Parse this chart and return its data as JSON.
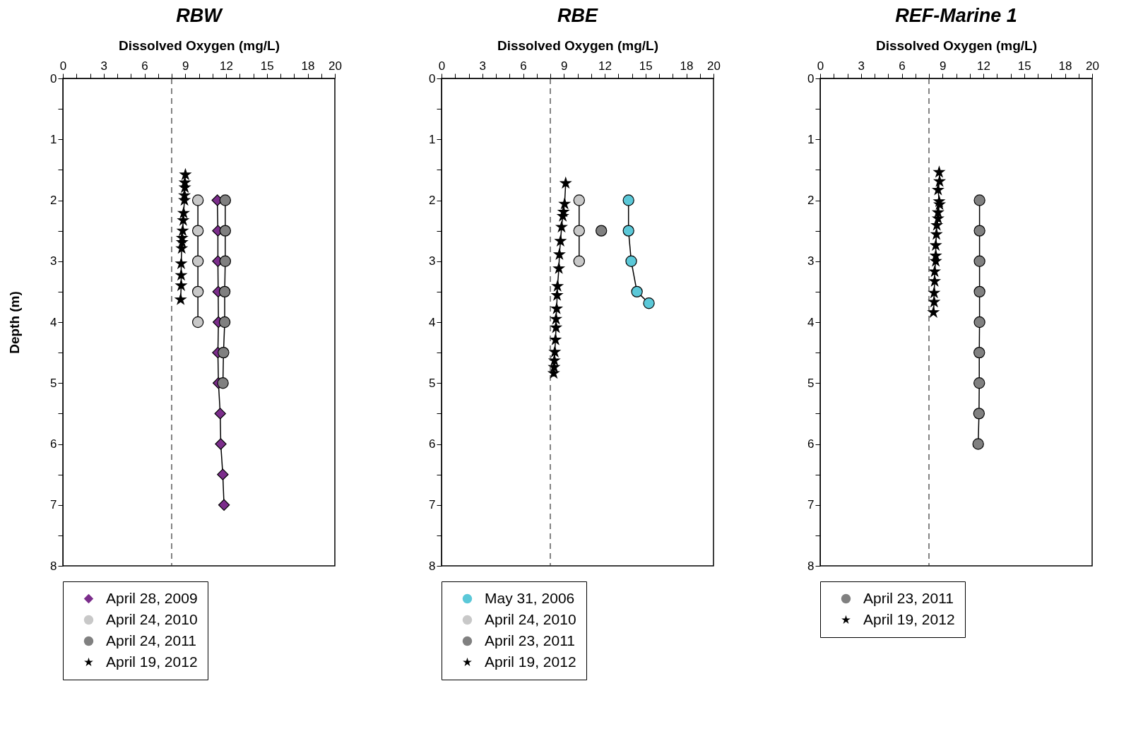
{
  "chart_data": [
    {
      "type": "line",
      "title": "RBW",
      "xlabel": "Dissolved Oxygen (mg/L)",
      "ylabel": "Depth (m)",
      "xlim": [
        0,
        20
      ],
      "xticks": [
        0,
        {
          "value": 1,
          "label": null
        },
        {
          "value": 2,
          "label": null
        },
        3,
        {
          "value": 4,
          "label": null
        },
        {
          "value": 5,
          "label": null
        },
        6,
        {
          "value": 7,
          "label": null
        },
        {
          "value": 8,
          "label": null
        },
        9,
        {
          "value": 10,
          "label": null
        },
        {
          "value": 11,
          "label": null
        },
        12,
        {
          "value": 13,
          "label": null
        },
        {
          "value": 14,
          "label": null
        },
        15,
        {
          "value": 16,
          "label": null
        },
        {
          "value": 17,
          "label": null
        },
        18,
        {
          "value": 19,
          "label": null
        },
        20
      ],
      "ylim": [
        8,
        0
      ],
      "yticks": [
        0,
        {
          "value": 0.5,
          "label": null
        },
        1,
        {
          "value": 1.5,
          "label": null
        },
        2,
        {
          "value": 2.5,
          "label": null
        },
        3,
        {
          "value": 3.5,
          "label": null
        },
        4,
        {
          "value": 4.5,
          "label": null
        },
        5,
        {
          "value": 5.5,
          "label": null
        },
        6,
        {
          "value": 6.5,
          "label": null
        },
        7,
        {
          "value": 7.5,
          "label": null
        },
        8
      ],
      "grid": false,
      "legend": "bottom",
      "ref_lines": [
        {
          "axis": "x",
          "value": 8,
          "line_style": "dashed"
        }
      ],
      "series": [
        {
          "name": "April 28, 2009",
          "color": "#7b2d8b",
          "marker": "diamond",
          "x": [
            11.36,
            11.4,
            11.4,
            11.42,
            11.44,
            11.4,
            11.44,
            11.57,
            11.61,
            11.76,
            11.85
          ],
          "values": [
            2,
            2.5,
            3,
            3.5,
            4,
            4.5,
            5,
            5.5,
            6,
            6.5,
            7
          ]
        },
        {
          "name": "April 24, 2010",
          "color": "#c8c8c8",
          "marker": "circle",
          "x": [
            9.93,
            9.93,
            9.93,
            9.93,
            9.93
          ],
          "values": [
            2,
            2.5,
            3,
            3.5,
            4
          ]
        },
        {
          "name": "April 24, 2011",
          "color": "#808080",
          "marker": "circle",
          "x": [
            11.94,
            11.94,
            11.94,
            11.9,
            11.9,
            11.81,
            11.77
          ],
          "values": [
            2,
            2.5,
            3,
            3.5,
            4,
            4.5,
            5
          ]
        },
        {
          "name": "April 19, 2012",
          "color": "#000000",
          "marker": "star",
          "x": [
            9.01,
            8.97,
            8.97,
            8.94,
            8.94,
            8.88,
            8.85,
            8.81,
            8.77,
            8.77,
            8.74,
            8.7,
            8.7,
            8.7,
            8.66
          ],
          "values": [
            1.58,
            1.71,
            1.79,
            1.92,
            2.0,
            2.21,
            2.33,
            2.5,
            2.62,
            2.69,
            2.79,
            3.04,
            3.23,
            3.4,
            3.63
          ]
        }
      ]
    },
    {
      "type": "line",
      "title": "RBE",
      "xlabel": "Dissolved Oxygen (mg/L)",
      "xlim": [
        0,
        20
      ],
      "xticks": [
        0,
        {
          "value": 1,
          "label": null
        },
        {
          "value": 2,
          "label": null
        },
        3,
        {
          "value": 4,
          "label": null
        },
        {
          "value": 5,
          "label": null
        },
        6,
        {
          "value": 7,
          "label": null
        },
        {
          "value": 8,
          "label": null
        },
        9,
        {
          "value": 10,
          "label": null
        },
        {
          "value": 11,
          "label": null
        },
        12,
        {
          "value": 13,
          "label": null
        },
        {
          "value": 14,
          "label": null
        },
        15,
        {
          "value": 16,
          "label": null
        },
        {
          "value": 17,
          "label": null
        },
        18,
        {
          "value": 19,
          "label": null
        },
        20
      ],
      "ylim": [
        8,
        0
      ],
      "yticks": [
        0,
        {
          "value": 0.5,
          "label": null
        },
        1,
        {
          "value": 1.5,
          "label": null
        },
        2,
        {
          "value": 2.5,
          "label": null
        },
        3,
        {
          "value": 3.5,
          "label": null
        },
        4,
        {
          "value": 4.5,
          "label": null
        },
        5,
        {
          "value": 5.5,
          "label": null
        },
        6,
        {
          "value": 6.5,
          "label": null
        },
        7,
        {
          "value": 7.5,
          "label": null
        },
        8
      ],
      "grid": false,
      "legend": "bottom",
      "ref_lines": [
        {
          "axis": "x",
          "value": 8,
          "line_style": "dashed"
        }
      ],
      "series": [
        {
          "name": "May 31, 2006",
          "color": "#5bc8d8",
          "marker": "circle",
          "x": [
            13.75,
            13.75,
            13.95,
            14.37,
            15.25
          ],
          "values": [
            2,
            2.5,
            3,
            3.5,
            3.69
          ]
        },
        {
          "name": "April 24, 2010",
          "color": "#c8c8c8",
          "marker": "circle",
          "x": [
            10.12,
            10.12,
            10.12
          ],
          "values": [
            2,
            2.5,
            3
          ]
        },
        {
          "name": "April 23, 2011",
          "color": "#808080",
          "marker": "circle",
          "x": [
            11.75
          ],
          "values": [
            2.5
          ]
        },
        {
          "name": "April 19, 2012",
          "color": "#000000",
          "marker": "star",
          "x": [
            9.13,
            9.05,
            8.97,
            8.92,
            8.83,
            8.75,
            8.67,
            8.63,
            8.53,
            8.5,
            8.47,
            8.42,
            8.42,
            8.38,
            8.33,
            8.3,
            8.28,
            8.25
          ],
          "values": [
            1.72,
            2.06,
            2.19,
            2.26,
            2.44,
            2.67,
            2.89,
            3.12,
            3.41,
            3.56,
            3.78,
            3.95,
            4.09,
            4.29,
            4.49,
            4.63,
            4.74,
            4.84
          ]
        }
      ]
    },
    {
      "type": "line",
      "title": "REF-Marine 1",
      "xlabel": "Dissolved Oxygen (mg/L)",
      "xlim": [
        0,
        20
      ],
      "xticks": [
        0,
        {
          "value": 1,
          "label": null
        },
        {
          "value": 2,
          "label": null
        },
        3,
        {
          "value": 4,
          "label": null
        },
        {
          "value": 5,
          "label": null
        },
        6,
        {
          "value": 7,
          "label": null
        },
        {
          "value": 8,
          "label": null
        },
        9,
        {
          "value": 10,
          "label": null
        },
        {
          "value": 11,
          "label": null
        },
        12,
        {
          "value": 13,
          "label": null
        },
        {
          "value": 14,
          "label": null
        },
        15,
        {
          "value": 16,
          "label": null
        },
        {
          "value": 17,
          "label": null
        },
        18,
        {
          "value": 19,
          "label": null
        },
        20
      ],
      "ylim": [
        8,
        0
      ],
      "yticks": [
        0,
        {
          "value": 0.5,
          "label": null
        },
        1,
        {
          "value": 1.5,
          "label": null
        },
        2,
        {
          "value": 2.5,
          "label": null
        },
        3,
        {
          "value": 3.5,
          "label": null
        },
        4,
        {
          "value": 4.5,
          "label": null
        },
        5,
        {
          "value": 5.5,
          "label": null
        },
        6,
        {
          "value": 6.5,
          "label": null
        },
        7,
        {
          "value": 7.5,
          "label": null
        },
        8
      ],
      "grid": false,
      "legend": "bottom",
      "ref_lines": [
        {
          "axis": "x",
          "value": 8,
          "line_style": "dashed"
        }
      ],
      "series": [
        {
          "name": "April 23, 2011",
          "color": "#808080",
          "marker": "circle",
          "x": [
            11.72,
            11.72,
            11.72,
            11.72,
            11.72,
            11.7,
            11.7,
            11.68,
            11.62
          ],
          "values": [
            2,
            2.5,
            3,
            3.5,
            4,
            4.5,
            5,
            5.5,
            6
          ]
        },
        {
          "name": "April 19, 2012",
          "color": "#000000",
          "marker": "star",
          "x": [
            8.75,
            8.78,
            8.67,
            8.75,
            8.78,
            8.67,
            8.67,
            8.58,
            8.55,
            8.5,
            8.5,
            8.5,
            8.42,
            8.42,
            8.38,
            8.38,
            8.33
          ],
          "values": [
            1.54,
            1.69,
            1.83,
            2.02,
            2.07,
            2.2,
            2.3,
            2.41,
            2.56,
            2.74,
            2.91,
            3.0,
            3.17,
            3.33,
            3.52,
            3.67,
            3.84
          ]
        }
      ]
    }
  ]
}
